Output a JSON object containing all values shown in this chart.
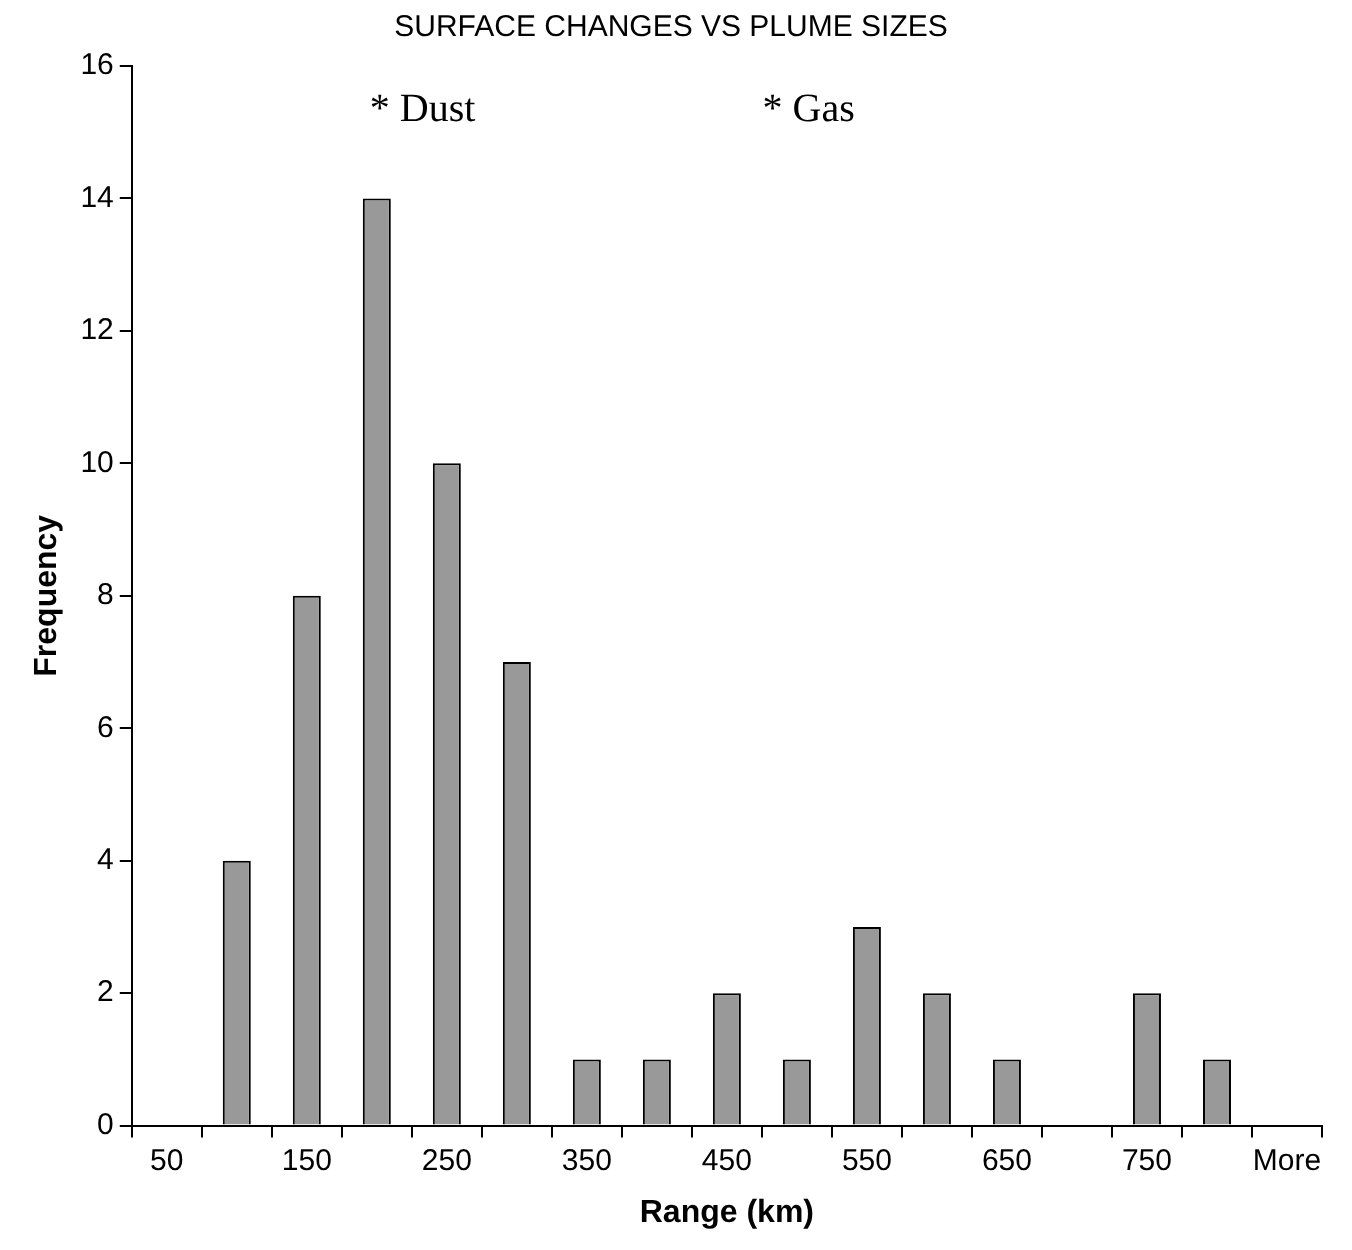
{
  "chart_data": {
    "type": "bar",
    "title": "SURFACE CHANGES VS PLUME SIZES",
    "xlabel": "Range (km)",
    "ylabel": "Frequency",
    "categories": [
      "50",
      null,
      "150",
      null,
      "250",
      null,
      "350",
      null,
      "450",
      null,
      "550",
      null,
      "650",
      null,
      "750",
      null,
      "More"
    ],
    "values": [
      0,
      4,
      8,
      14,
      10,
      7,
      1,
      1,
      2,
      1,
      3,
      2,
      1,
      0,
      2,
      1,
      0
    ],
    "color": "#999999",
    "ylim": [
      0,
      16
    ],
    "yticks": [
      0,
      2,
      4,
      6,
      8,
      10,
      12,
      14,
      16
    ],
    "grid": false,
    "legend": false,
    "annotations": [
      "* Dust",
      "* Gas"
    ]
  }
}
